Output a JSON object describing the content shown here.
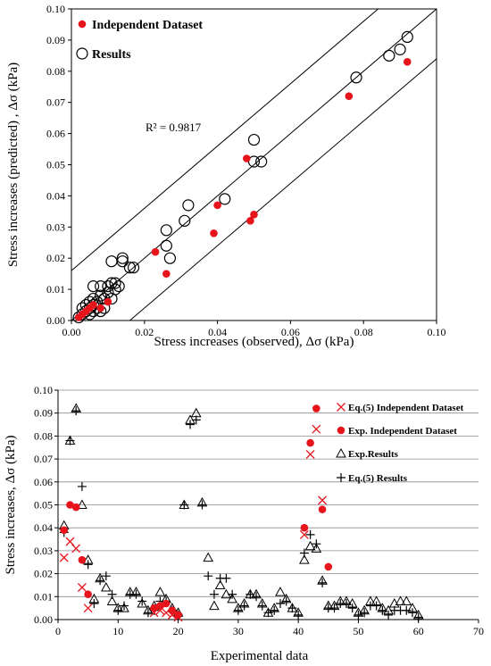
{
  "chart_data": [
    {
      "type": "scatter",
      "xlabel": "Stress increases (observed), Δσ (kPa)",
      "ylabel": "Stress increases (predicted) , Δσ (kPa)",
      "xlim": [
        0,
        0.1
      ],
      "ylim": [
        0,
        0.1
      ],
      "xticks": [
        "0.00",
        "0.02",
        "0.04",
        "0.06",
        "0.08",
        "0.10"
      ],
      "yticks": [
        "0.00",
        "0.01",
        "0.02",
        "0.03",
        "0.04",
        "0.05",
        "0.06",
        "0.07",
        "0.08",
        "0.09",
        "0.10"
      ],
      "grid": false,
      "legend": "top-left",
      "annotation": "R² = 0.9817",
      "lines": [
        {
          "x": [
            0,
            0.1
          ],
          "y": [
            0,
            0.1
          ]
        },
        {
          "x": [
            0,
            0.084
          ],
          "y": [
            0.016,
            0.1
          ]
        },
        {
          "x": [
            0.016,
            0.1
          ],
          "y": [
            0,
            0.084
          ]
        }
      ],
      "series": [
        {
          "name": "Independent Dataset",
          "color": "#e8141c",
          "marker": "filled-circle",
          "points": [
            [
              0.002,
              0.001
            ],
            [
              0.003,
              0.002
            ],
            [
              0.004,
              0.003
            ],
            [
              0.005,
              0.004
            ],
            [
              0.006,
              0.005
            ],
            [
              0.008,
              0.004
            ],
            [
              0.01,
              0.006
            ],
            [
              0.023,
              0.022
            ],
            [
              0.026,
              0.015
            ],
            [
              0.039,
              0.028
            ],
            [
              0.04,
              0.037
            ],
            [
              0.048,
              0.052
            ],
            [
              0.049,
              0.032
            ],
            [
              0.05,
              0.034
            ],
            [
              0.076,
              0.072
            ],
            [
              0.092,
              0.083
            ]
          ]
        },
        {
          "name": "Results",
          "color": "#000000",
          "marker": "open-circle",
          "points": [
            [
              0.002,
              0.001
            ],
            [
              0.003,
              0.002
            ],
            [
              0.003,
              0.004
            ],
            [
              0.004,
              0.003
            ],
            [
              0.004,
              0.005
            ],
            [
              0.005,
              0.002
            ],
            [
              0.005,
              0.004
            ],
            [
              0.005,
              0.006
            ],
            [
              0.006,
              0.003
            ],
            [
              0.006,
              0.005
            ],
            [
              0.006,
              0.007
            ],
            [
              0.006,
              0.011
            ],
            [
              0.007,
              0.004
            ],
            [
              0.007,
              0.006
            ],
            [
              0.008,
              0.003
            ],
            [
              0.008,
              0.008
            ],
            [
              0.008,
              0.011
            ],
            [
              0.009,
              0.004
            ],
            [
              0.009,
              0.007
            ],
            [
              0.01,
              0.009
            ],
            [
              0.01,
              0.011
            ],
            [
              0.011,
              0.007
            ],
            [
              0.011,
              0.012
            ],
            [
              0.011,
              0.019
            ],
            [
              0.012,
              0.01
            ],
            [
              0.012,
              0.012
            ],
            [
              0.013,
              0.011
            ],
            [
              0.014,
              0.019
            ],
            [
              0.014,
              0.02
            ],
            [
              0.016,
              0.017
            ],
            [
              0.017,
              0.017
            ],
            [
              0.026,
              0.024
            ],
            [
              0.026,
              0.029
            ],
            [
              0.027,
              0.02
            ],
            [
              0.031,
              0.032
            ],
            [
              0.032,
              0.037
            ],
            [
              0.042,
              0.039
            ],
            [
              0.05,
              0.051
            ],
            [
              0.05,
              0.058
            ],
            [
              0.052,
              0.051
            ],
            [
              0.078,
              0.078
            ],
            [
              0.087,
              0.085
            ],
            [
              0.09,
              0.087
            ],
            [
              0.092,
              0.091
            ]
          ]
        }
      ]
    },
    {
      "type": "scatter",
      "xlabel": "Experimental data",
      "ylabel": "Stress increases, Δσ (kPa)",
      "xlim": [
        0,
        70
      ],
      "ylim": [
        0,
        0.1
      ],
      "xticks": [
        "0",
        "10",
        "20",
        "30",
        "40",
        "50",
        "60",
        "70"
      ],
      "yticks": [
        "0.00",
        "0.01",
        "0.02",
        "0.03",
        "0.04",
        "0.05",
        "0.06",
        "0.07",
        "0.08",
        "0.09",
        "0.10"
      ],
      "grid": true,
      "legend": "right",
      "series": [
        {
          "name": "Eq.(5) Independent Dataset",
          "color": "#e8141c",
          "marker": "x",
          "points": [
            [
              1,
              0.027
            ],
            [
              2,
              0.034
            ],
            [
              3,
              0.031
            ],
            [
              4,
              0.014
            ],
            [
              5,
              0.005
            ],
            [
              16,
              0.003
            ],
            [
              17,
              0.004
            ],
            [
              18,
              0.003
            ],
            [
              19,
              0.002
            ],
            [
              20,
              0.001
            ],
            [
              41,
              0.037
            ],
            [
              42,
              0.072
            ],
            [
              43,
              0.083
            ],
            [
              44,
              0.052
            ]
          ]
        },
        {
          "name": "Exp. Independent Dataset",
          "color": "#e8141c",
          "marker": "filled-circle",
          "points": [
            [
              1,
              0.039
            ],
            [
              2,
              0.05
            ],
            [
              3,
              0.049
            ],
            [
              4,
              0.026
            ],
            [
              5,
              0.011
            ],
            [
              16,
              0.005
            ],
            [
              17,
              0.006
            ],
            [
              18,
              0.007
            ],
            [
              19,
              0.004
            ],
            [
              20,
              0.002
            ],
            [
              41,
              0.04
            ],
            [
              42,
              0.077
            ],
            [
              43,
              0.092
            ],
            [
              44,
              0.048
            ],
            [
              45,
              0.023
            ]
          ]
        },
        {
          "name": "Exp.Results",
          "color": "#000000",
          "marker": "open-triangle",
          "points": [
            [
              1,
              0.041
            ],
            [
              2,
              0.078
            ],
            [
              3,
              0.092
            ],
            [
              4,
              0.05
            ],
            [
              5,
              0.026
            ],
            [
              6,
              0.009
            ],
            [
              7,
              0.018
            ],
            [
              8,
              0.014
            ],
            [
              9,
              0.008
            ],
            [
              10,
              0.005
            ],
            [
              11,
              0.005
            ],
            [
              12,
              0.012
            ],
            [
              13,
              0.012
            ],
            [
              14,
              0.007
            ],
            [
              15,
              0.004
            ],
            [
              16,
              0.006
            ],
            [
              17,
              0.012
            ],
            [
              18,
              0.009
            ],
            [
              19,
              0.005
            ],
            [
              20,
              0.003
            ],
            [
              21,
              0.05
            ],
            [
              22,
              0.087
            ],
            [
              23,
              0.09
            ],
            [
              24,
              0.051
            ],
            [
              25,
              0.027
            ],
            [
              26,
              0.006
            ],
            [
              27,
              0.015
            ],
            [
              28,
              0.011
            ],
            [
              29,
              0.009
            ],
            [
              30,
              0.005
            ],
            [
              31,
              0.007
            ],
            [
              32,
              0.011
            ],
            [
              33,
              0.011
            ],
            [
              34,
              0.007
            ],
            [
              35,
              0.003
            ],
            [
              36,
              0.005
            ],
            [
              37,
              0.012
            ],
            [
              38,
              0.009
            ],
            [
              39,
              0.005
            ],
            [
              40,
              0.003
            ],
            [
              41,
              0.026
            ],
            [
              42,
              0.032
            ],
            [
              43,
              0.031
            ],
            [
              44,
              0.017
            ],
            [
              45,
              0.006
            ],
            [
              46,
              0.006
            ],
            [
              47,
              0.008
            ],
            [
              48,
              0.008
            ],
            [
              49,
              0.007
            ],
            [
              50,
              0.003
            ],
            [
              51,
              0.004
            ],
            [
              52,
              0.008
            ],
            [
              53,
              0.008
            ],
            [
              54,
              0.005
            ],
            [
              55,
              0.004
            ],
            [
              56,
              0.007
            ],
            [
              57,
              0.008
            ],
            [
              58,
              0.008
            ],
            [
              59,
              0.005
            ],
            [
              60,
              0.002
            ]
          ]
        },
        {
          "name": "Eq.(5) Results",
          "color": "#000000",
          "marker": "plus",
          "points": [
            [
              1,
              0.038
            ],
            [
              2,
              0.078
            ],
            [
              3,
              0.091
            ],
            [
              4,
              0.058
            ],
            [
              5,
              0.024
            ],
            [
              6,
              0.007
            ],
            [
              7,
              0.017
            ],
            [
              8,
              0.019
            ],
            [
              9,
              0.011
            ],
            [
              10,
              0.004
            ],
            [
              11,
              0.006
            ],
            [
              12,
              0.011
            ],
            [
              13,
              0.011
            ],
            [
              14,
              0.008
            ],
            [
              15,
              0.003
            ],
            [
              16,
              0.004
            ],
            [
              17,
              0.008
            ],
            [
              18,
              0.008
            ],
            [
              19,
              0.004
            ],
            [
              20,
              0.002
            ],
            [
              21,
              0.05
            ],
            [
              22,
              0.085
            ],
            [
              23,
              0.087
            ],
            [
              24,
              0.05
            ],
            [
              25,
              0.019
            ],
            [
              26,
              0.011
            ],
            [
              27,
              0.018
            ],
            [
              28,
              0.018
            ],
            [
              29,
              0.011
            ],
            [
              30,
              0.004
            ],
            [
              31,
              0.006
            ],
            [
              32,
              0.011
            ],
            [
              33,
              0.01
            ],
            [
              34,
              0.006
            ],
            [
              35,
              0.003
            ],
            [
              36,
              0.004
            ],
            [
              37,
              0.007
            ],
            [
              38,
              0.008
            ],
            [
              39,
              0.005
            ],
            [
              40,
              0.002
            ],
            [
              41,
              0.029
            ],
            [
              42,
              0.037
            ],
            [
              43,
              0.033
            ],
            [
              44,
              0.016
            ],
            [
              45,
              0.005
            ],
            [
              46,
              0.005
            ],
            [
              47,
              0.007
            ],
            [
              48,
              0.007
            ],
            [
              49,
              0.005
            ],
            [
              50,
              0.002
            ],
            [
              51,
              0.003
            ],
            [
              52,
              0.006
            ],
            [
              53,
              0.006
            ],
            [
              54,
              0.004
            ],
            [
              55,
              0.002
            ],
            [
              56,
              0.004
            ],
            [
              57,
              0.004
            ],
            [
              58,
              0.004
            ],
            [
              59,
              0.003
            ],
            [
              60,
              0.001
            ]
          ]
        }
      ]
    }
  ]
}
